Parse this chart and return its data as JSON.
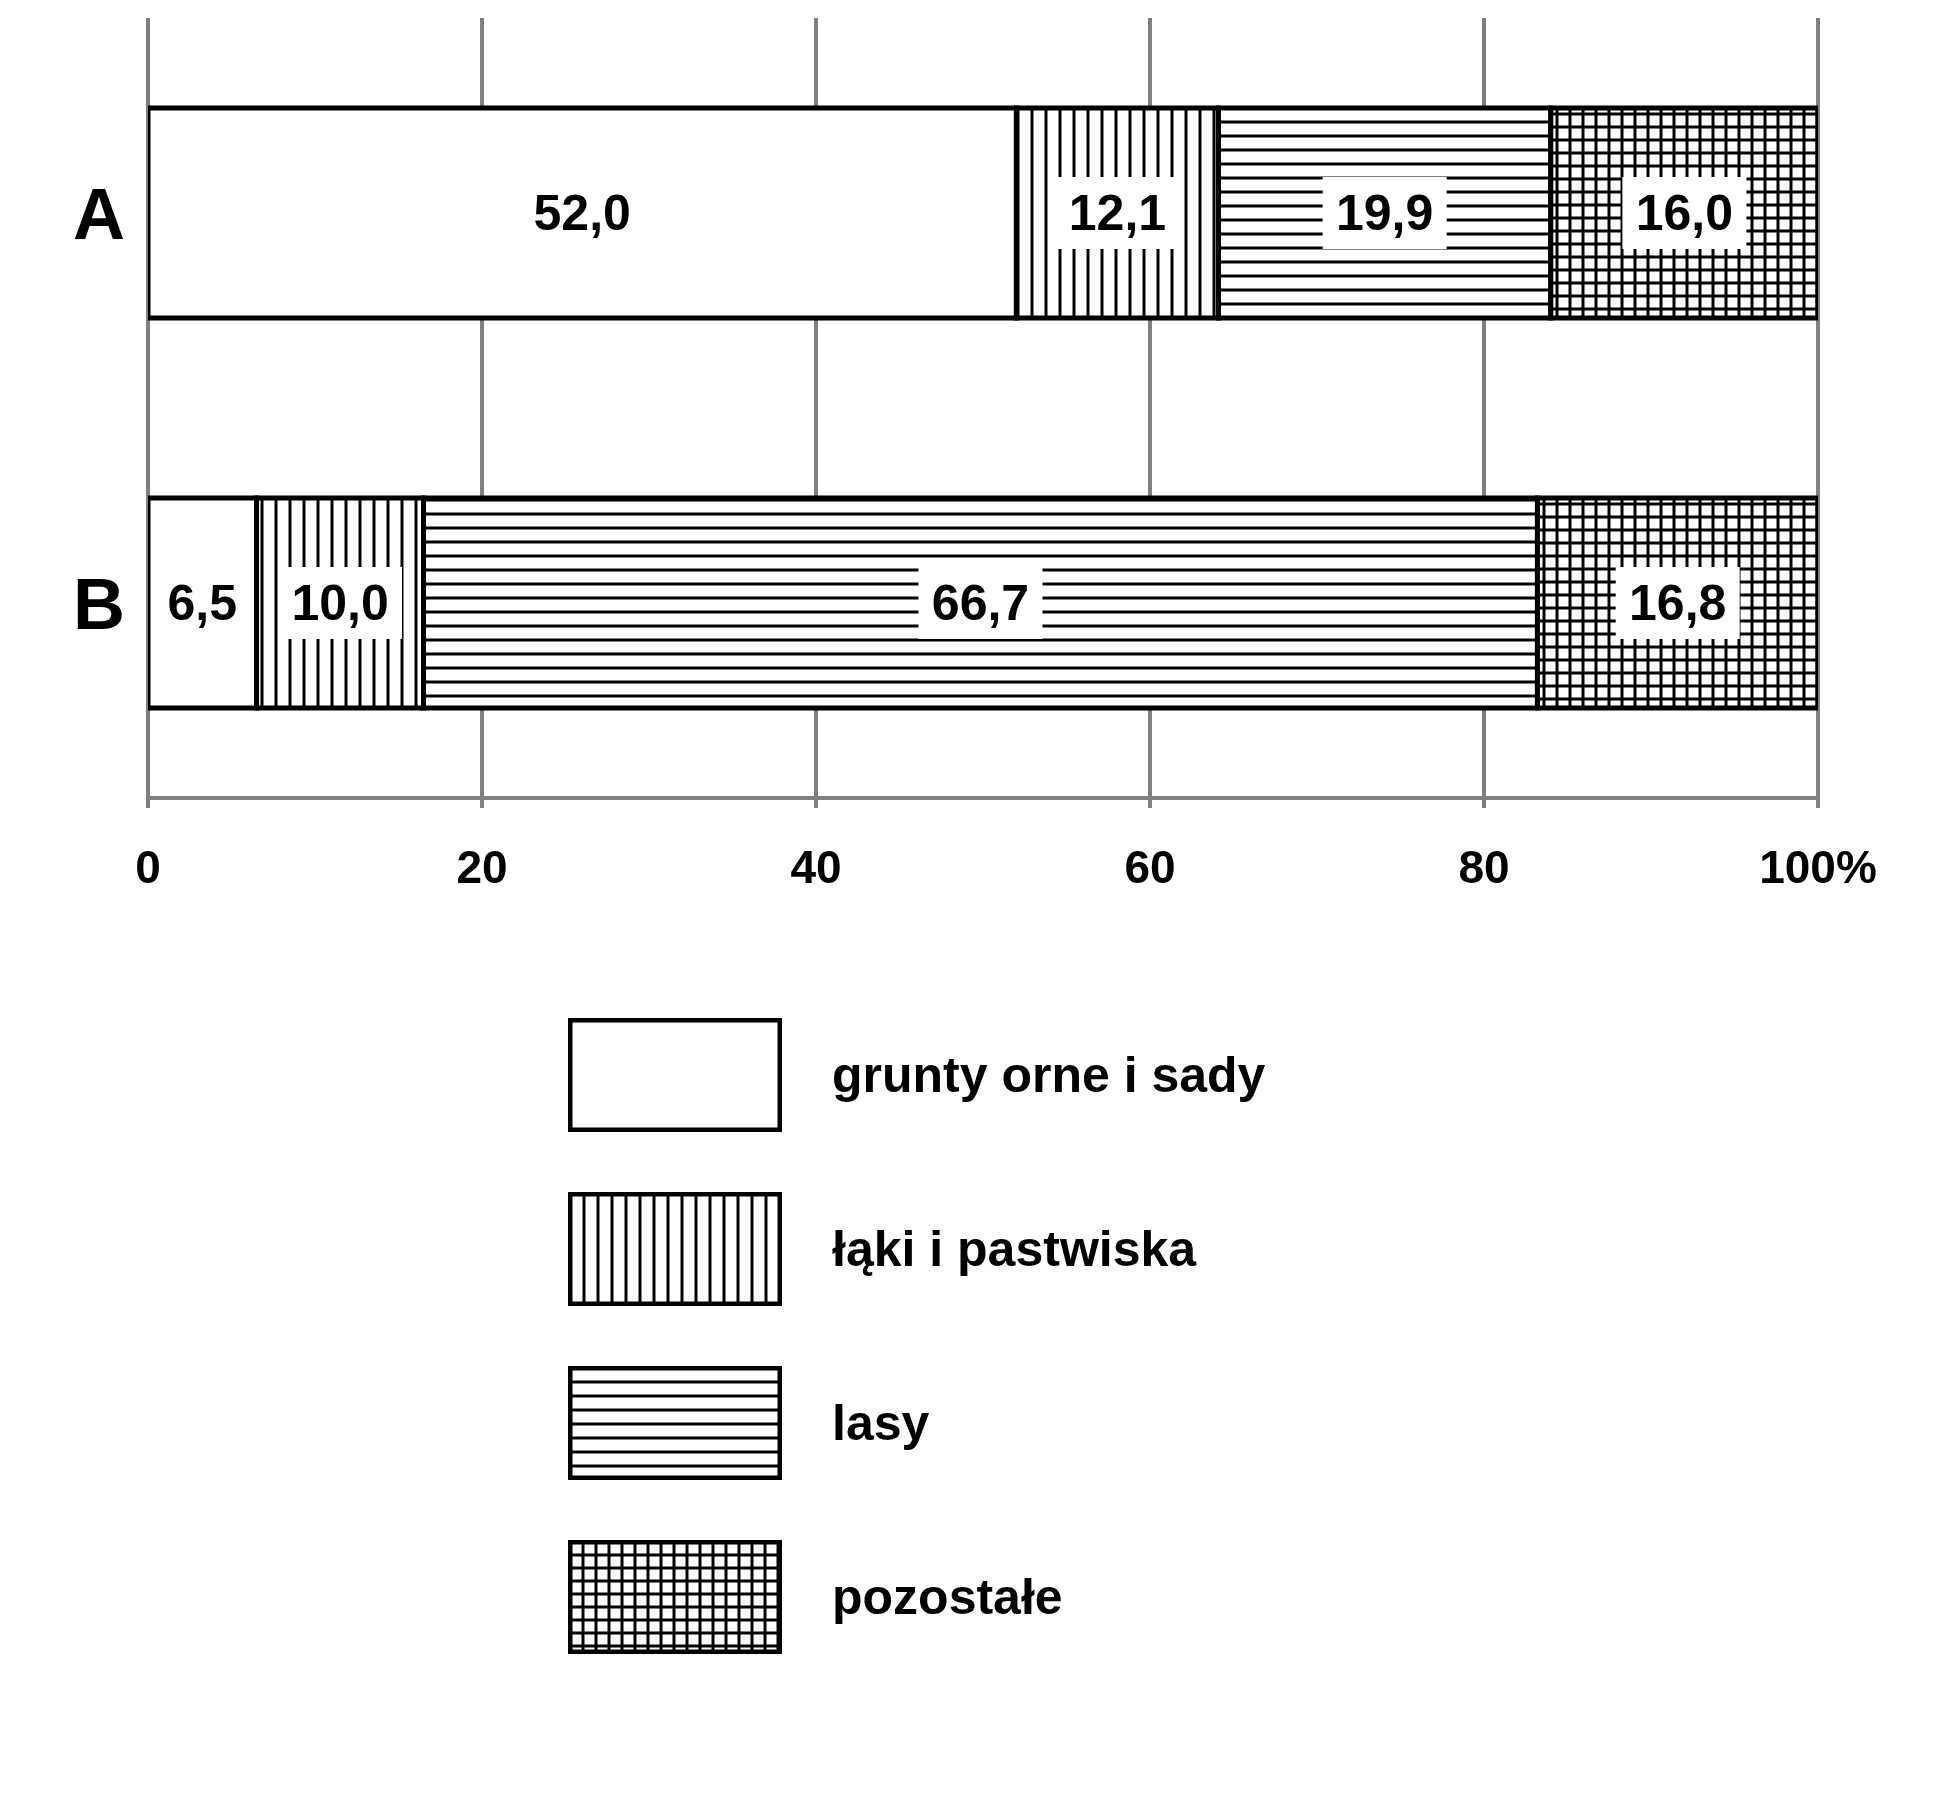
{
  "chart_data": {
    "type": "bar",
    "orientation": "horizontal",
    "stacked": true,
    "categories": [
      "A",
      "B"
    ],
    "series": [
      {
        "name": "grunty orne i sady",
        "color": "#ffffff",
        "values": [
          52.0,
          6.5
        ],
        "value_labels": [
          "52,0",
          "6,5"
        ]
      },
      {
        "name": "łąki i pastwiska",
        "color": "#000000",
        "values": [
          12.1,
          10.0
        ],
        "value_labels": [
          "12,1",
          "10,0"
        ]
      },
      {
        "name": "lasy",
        "color": "#000000",
        "values": [
          19.9,
          66.7
        ],
        "value_labels": [
          "19,9",
          "66,7"
        ]
      },
      {
        "name": "pozostałe",
        "color": "#000000",
        "values": [
          16.0,
          16.8
        ],
        "value_labels": [
          "16,0",
          "16,8"
        ]
      }
    ],
    "xlim": [
      0,
      100
    ],
    "xticks": [
      0,
      20,
      40,
      60,
      80,
      {
        "value": 100,
        "label": "100%"
      }
    ],
    "grid": "x",
    "legend": "bottom"
  }
}
